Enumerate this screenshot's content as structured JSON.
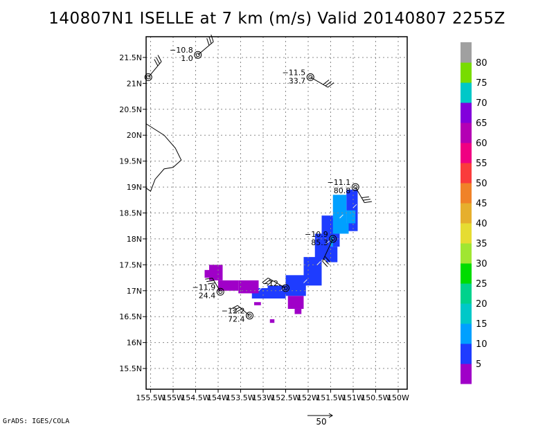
{
  "title": "140807N1 ISELLE at 7 km (m/s) Valid 20140807 2255Z",
  "credit": "GrADS: IGES/COLA",
  "reference_vector_label": "50",
  "chart_data": {
    "type": "heatmap",
    "title": "140807N1 ISELLE at 7 km (m/s) Valid 20140807 2255Z",
    "xlabel": "",
    "ylabel": "",
    "xlim": [
      -155.6,
      -149.8
    ],
    "ylim": [
      15.1,
      21.9
    ],
    "grid": true,
    "x_ticks": [
      {
        "v": -155.5,
        "label": "155.5W"
      },
      {
        "v": -155,
        "label": "155W"
      },
      {
        "v": -154.5,
        "label": "154.5W"
      },
      {
        "v": -154,
        "label": "154W"
      },
      {
        "v": -153.5,
        "label": "153.5W"
      },
      {
        "v": -153,
        "label": "153W"
      },
      {
        "v": -152.5,
        "label": "152.5W"
      },
      {
        "v": -152,
        "label": "152W"
      },
      {
        "v": -151.5,
        "label": "151.5W"
      },
      {
        "v": -151,
        "label": "151W"
      },
      {
        "v": -150.5,
        "label": "150.5W"
      },
      {
        "v": -150,
        "label": "150W"
      }
    ],
    "y_ticks": [
      {
        "v": 15.5,
        "label": "15.5N"
      },
      {
        "v": 16,
        "label": "16N"
      },
      {
        "v": 16.5,
        "label": "16.5N"
      },
      {
        "v": 17,
        "label": "17N"
      },
      {
        "v": 17.5,
        "label": "17.5N"
      },
      {
        "v": 18,
        "label": "18N"
      },
      {
        "v": 18.5,
        "label": "18.5N"
      },
      {
        "v": 19,
        "label": "19N"
      },
      {
        "v": 19.5,
        "label": "19.5N"
      },
      {
        "v": 20,
        "label": "20N"
      },
      {
        "v": 20.5,
        "label": "20.5N"
      },
      {
        "v": 21,
        "label": "21N"
      },
      {
        "v": 21.5,
        "label": "21.5N"
      }
    ],
    "colorbar": {
      "labels": [
        "5",
        "10",
        "15",
        "20",
        "25",
        "30",
        "35",
        "40",
        "45",
        "50",
        "55",
        "60",
        "65",
        "70",
        "75",
        "80"
      ],
      "colors": [
        "#a000c8",
        "#1e3cff",
        "#00a0ff",
        "#00c8c8",
        "#00d28c",
        "#00dc00",
        "#a0e632",
        "#e6dc32",
        "#e6af2d",
        "#f08228",
        "#fa3c3c",
        "#f00082",
        "#b400b4",
        "#8200dc",
        "#00c8c8",
        "#78dc00",
        "#a0a0a0"
      ]
    },
    "coastline": [
      [
        -155.6,
        20.22
      ],
      [
        -155.2,
        20.0
      ],
      [
        -154.95,
        19.75
      ],
      [
        -154.82,
        19.52
      ],
      [
        -155.0,
        19.38
      ],
      [
        -155.2,
        19.35
      ],
      [
        -155.4,
        19.15
      ],
      [
        -155.5,
        18.92
      ],
      [
        -155.6,
        18.98
      ]
    ],
    "swath": [
      {
        "lon0": -151.15,
        "lon1": -150.9,
        "lat0": 18.15,
        "lat1": 18.95,
        "v": 9
      },
      {
        "lon0": -151.45,
        "lon1": -151.15,
        "lat0": 18.2,
        "lat1": 18.85,
        "v": 10
      },
      {
        "lon0": -151.5,
        "lon1": -151.4,
        "lat0": 17.85,
        "lat1": 18.4,
        "v": 10
      },
      {
        "lon0": -151.4,
        "lon1": -151.1,
        "lat0": 18.1,
        "lat1": 18.3,
        "v": 10
      },
      {
        "lon0": -151.15,
        "lon1": -150.95,
        "lat0": 18.3,
        "lat1": 18.55,
        "v": 11
      },
      {
        "lon0": -151.7,
        "lon1": -151.45,
        "lat0": 18.05,
        "lat1": 18.45,
        "v": 6
      },
      {
        "lon0": -151.45,
        "lon1": -151.3,
        "lat0": 17.85,
        "lat1": 18.1,
        "v": 7
      },
      {
        "lon0": -151.85,
        "lon1": -151.5,
        "lat0": 17.6,
        "lat1": 18.1,
        "v": 5
      },
      {
        "lon0": -151.6,
        "lon1": -151.35,
        "lat0": 17.55,
        "lat1": 17.85,
        "v": 8
      },
      {
        "lon0": -152.1,
        "lon1": -151.7,
        "lat0": 17.1,
        "lat1": 17.65,
        "v": 6
      },
      {
        "lon0": -152.5,
        "lon1": -152.05,
        "lat0": 16.9,
        "lat1": 17.3,
        "v": 6
      },
      {
        "lon0": -152.9,
        "lon1": -152.5,
        "lat0": 16.85,
        "lat1": 17.1,
        "v": 5
      },
      {
        "lon0": -153.25,
        "lon1": -152.9,
        "lat0": 16.85,
        "lat1": 17.05,
        "v": 5
      },
      {
        "lon0": -152.45,
        "lon1": -152.1,
        "lat0": 16.65,
        "lat1": 16.9,
        "v": 4
      },
      {
        "lon0": -152.3,
        "lon1": -152.15,
        "lat0": 16.55,
        "lat1": 16.65,
        "v": 4
      },
      {
        "lon0": -153.55,
        "lon1": -153.1,
        "lat0": 16.95,
        "lat1": 17.2,
        "v": 4
      },
      {
        "lon0": -154.0,
        "lon1": -153.55,
        "lat0": 17.0,
        "lat1": 17.2,
        "v": 4
      },
      {
        "lon0": -154.2,
        "lon1": -153.9,
        "lat0": 17.2,
        "lat1": 17.5,
        "v": 4
      },
      {
        "lon0": -154.3,
        "lon1": -154.2,
        "lat0": 17.25,
        "lat1": 17.4,
        "v": 3
      },
      {
        "lon0": -153.2,
        "lon1": -153.05,
        "lat0": 16.72,
        "lat1": 16.78,
        "v": 3
      },
      {
        "lon0": -152.85,
        "lon1": -152.75,
        "lat0": 16.38,
        "lat1": 16.45,
        "v": 3
      }
    ],
    "vectors": [
      {
        "lon": -151.0,
        "lat": 18.6,
        "u": 1,
        "v": 1
      },
      {
        "lon": -151.3,
        "lat": 18.4,
        "u": 1,
        "v": 1
      },
      {
        "lon": -151.6,
        "lat": 17.9,
        "u": 1,
        "v": 1
      },
      {
        "lon": -151.8,
        "lat": 17.5,
        "u": 1,
        "v": 1
      },
      {
        "lon": -152.1,
        "lat": 17.15,
        "u": 1,
        "v": 1
      },
      {
        "lon": -152.6,
        "lat": 17.0,
        "u": 1,
        "v": 1
      },
      {
        "lon": -153.1,
        "lat": 17.0,
        "u": 1,
        "v": 1
      }
    ],
    "stations": [
      {
        "lon": -155.55,
        "lat": 21.12,
        "label1": "",
        "label2": "",
        "barb_angle": 50,
        "barb_len": 0.45
      },
      {
        "lon": -154.45,
        "lat": 21.55,
        "label1": "−10.8",
        "label2": "1.0",
        "barb_angle": 40,
        "barb_len": 0.45
      },
      {
        "lon": -151.95,
        "lat": 21.12,
        "label1": "−11.5",
        "label2": "33.7",
        "barb_angle": -30,
        "barb_len": 0.45
      },
      {
        "lon": -150.95,
        "lat": 19.0,
        "label1": "−11.1",
        "label2": "80.8",
        "barb_angle": -60,
        "barb_len": 0.4
      },
      {
        "lon": -151.45,
        "lat": 18.0,
        "label1": "−10.9",
        "label2": "85.3",
        "barb_angle": 245,
        "barb_len": 0.55
      },
      {
        "lon": -152.5,
        "lat": 17.05,
        "label1": "−12.",
        "label2": "",
        "barb_angle": 150,
        "barb_len": 0.45
      },
      {
        "lon": -153.95,
        "lat": 16.98,
        "label1": "−11.9",
        "label2": "24.4",
        "barb_angle": 120,
        "barb_len": 0.35
      },
      {
        "lon": -153.3,
        "lat": 16.52,
        "label1": "−12.2",
        "label2": "72.4",
        "barb_angle": 140,
        "barb_len": 0.35
      }
    ]
  }
}
